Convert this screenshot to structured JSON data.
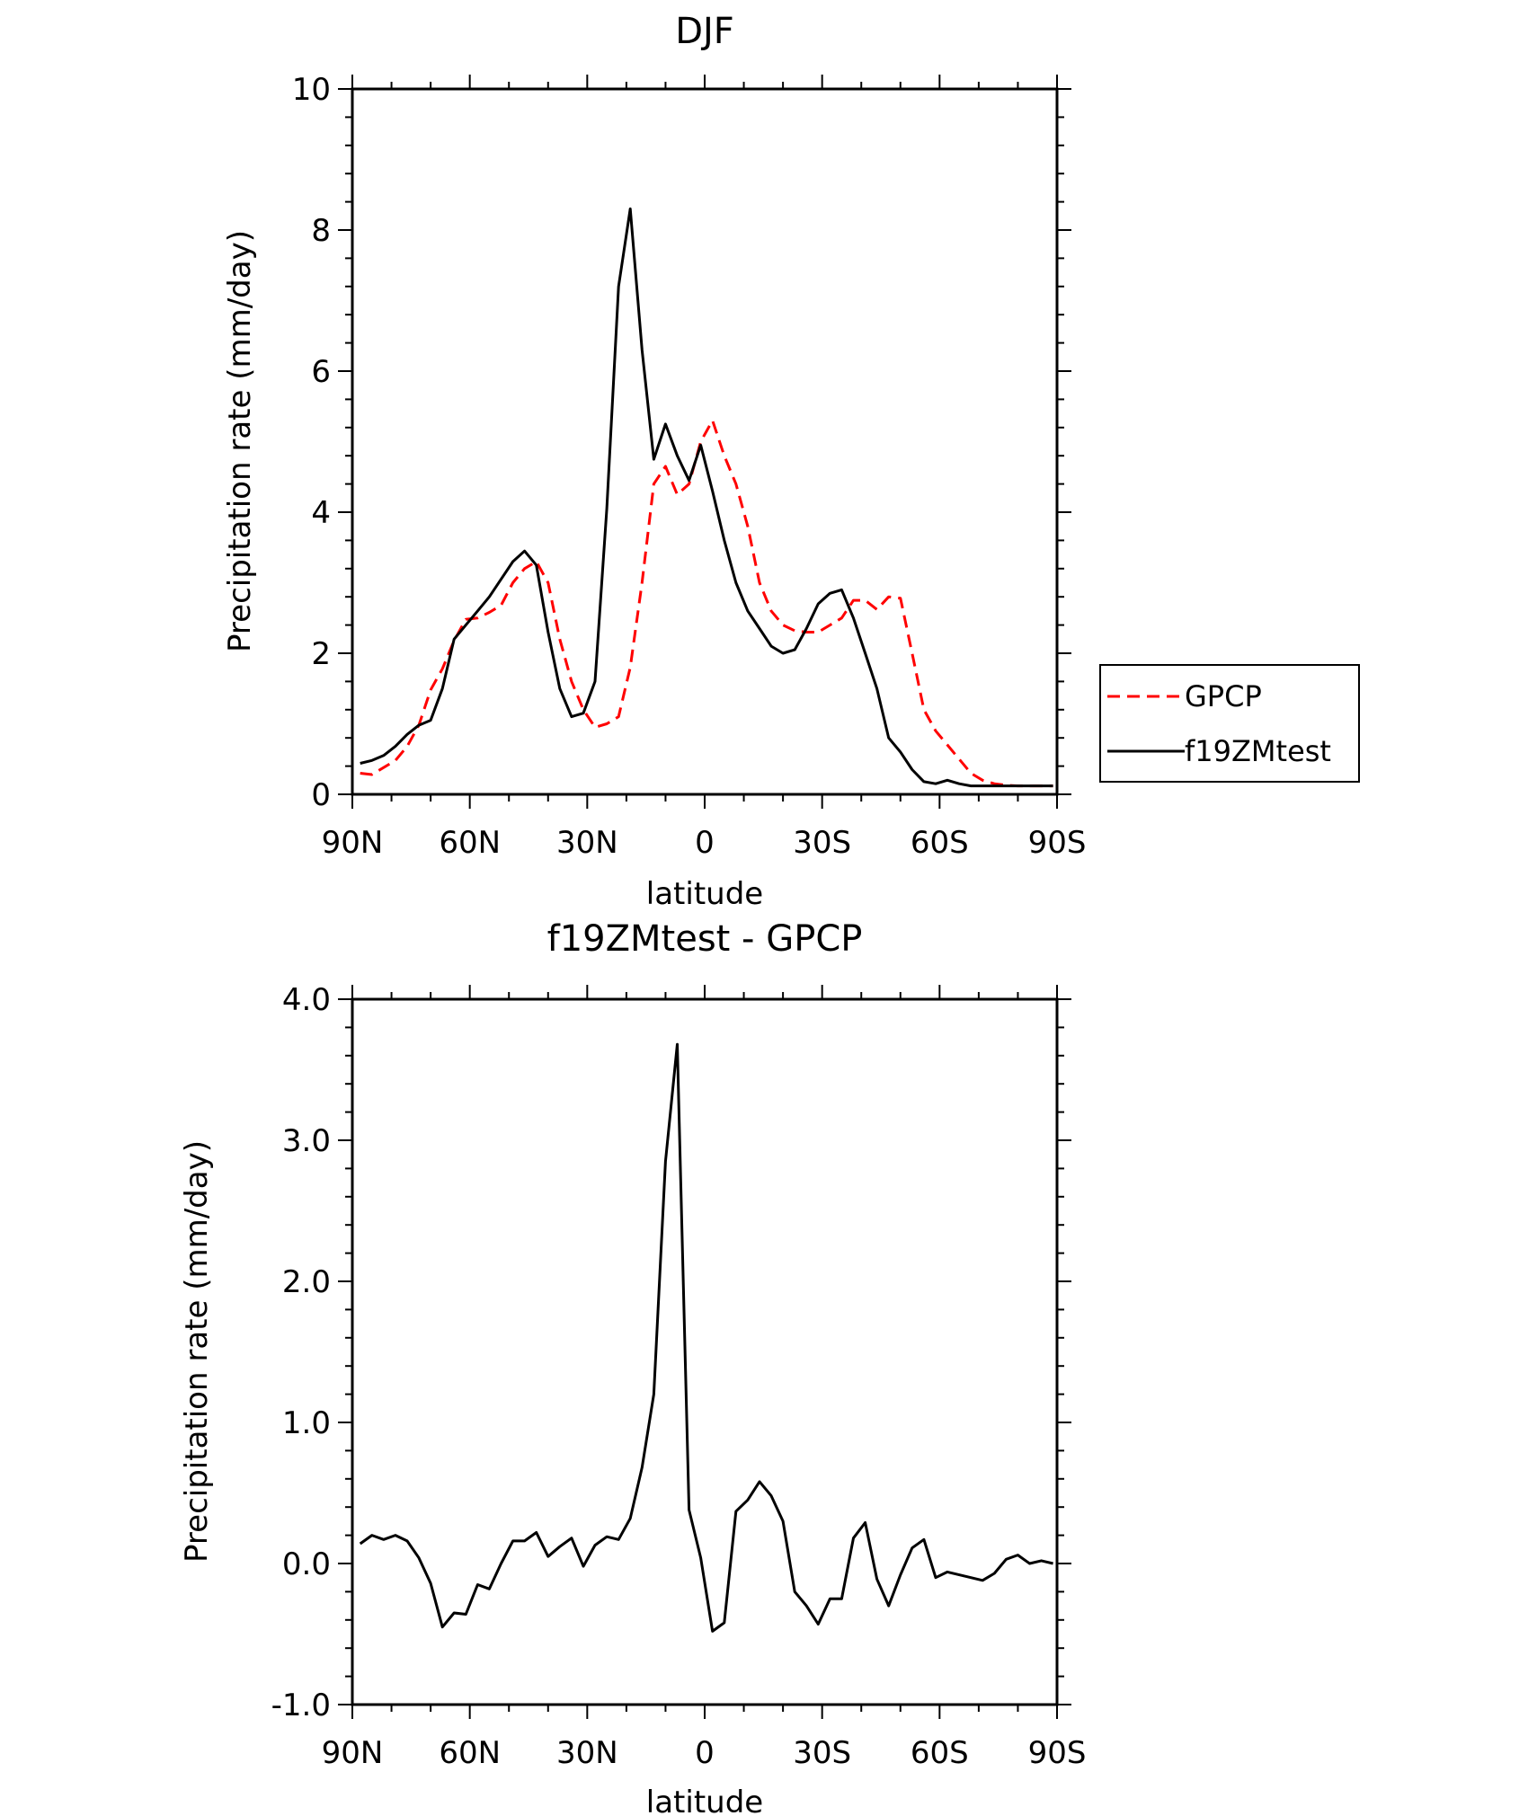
{
  "chart_data": [
    {
      "type": "line",
      "title": "DJF",
      "xlabel": "latitude",
      "ylabel": "Precipitation rate (mm/day)",
      "xlim": [
        90,
        -90
      ],
      "ylim": [
        0,
        10
      ],
      "x_tick_values": [
        90,
        60,
        30,
        0,
        -30,
        -60,
        -90
      ],
      "x_ticks": [
        "90N",
        "60N",
        "30N",
        "0",
        "30S",
        "60S",
        "90S"
      ],
      "y_tick_values": [
        0,
        2,
        4,
        6,
        8,
        10
      ],
      "y_ticks": [
        "0",
        "2",
        "4",
        "6",
        "8",
        "10"
      ],
      "legend_position": "right",
      "series": [
        {
          "name": "GPCP",
          "color": "#ff0000",
          "style": "dashed",
          "x": [
            88,
            85,
            82,
            79,
            76,
            73,
            70,
            67,
            64,
            61,
            58,
            55,
            52,
            49,
            46,
            43,
            40,
            37,
            34,
            31,
            28,
            25,
            22,
            19,
            16,
            13,
            10,
            7,
            4,
            1,
            -2,
            -5,
            -8,
            -11,
            -14,
            -17,
            -20,
            -23,
            -26,
            -29,
            -32,
            -35,
            -38,
            -41,
            -44,
            -47,
            -50,
            -53,
            -56,
            -59,
            -62,
            -65,
            -68,
            -71,
            -74,
            -77,
            -80,
            -83,
            -86,
            -89
          ],
          "values": [
            0.3,
            0.28,
            0.38,
            0.48,
            0.68,
            0.98,
            1.48,
            1.78,
            2.18,
            2.48,
            2.5,
            2.58,
            2.68,
            3.0,
            3.2,
            3.3,
            3.0,
            2.2,
            1.6,
            1.2,
            0.95,
            1.0,
            1.1,
            1.8,
            3.0,
            4.4,
            4.65,
            4.25,
            4.4,
            5.0,
            5.3,
            4.8,
            4.4,
            3.8,
            3.0,
            2.6,
            2.4,
            2.32,
            2.3,
            2.3,
            2.4,
            2.5,
            2.75,
            2.75,
            2.62,
            2.8,
            2.78,
            2.0,
            1.2,
            0.9,
            0.7,
            0.5,
            0.3,
            0.2,
            0.15,
            0.13,
            0.12,
            0.12,
            0.12,
            0.12
          ]
        },
        {
          "name": "f19ZMtest",
          "color": "#000000",
          "style": "solid",
          "x": [
            88,
            85,
            82,
            79,
            76,
            73,
            70,
            67,
            64,
            61,
            58,
            55,
            52,
            49,
            46,
            43,
            40,
            37,
            34,
            31,
            28,
            25,
            22,
            19,
            16,
            13,
            10,
            7,
            4,
            1,
            -2,
            -5,
            -8,
            -11,
            -14,
            -17,
            -20,
            -23,
            -26,
            -29,
            -32,
            -35,
            -38,
            -41,
            -44,
            -47,
            -50,
            -53,
            -56,
            -59,
            -62,
            -65,
            -68,
            -71,
            -74,
            -77,
            -80,
            -83,
            -86,
            -89
          ],
          "values": [
            0.44,
            0.48,
            0.55,
            0.68,
            0.85,
            0.98,
            1.05,
            1.5,
            2.2,
            2.4,
            2.6,
            2.8,
            3.05,
            3.3,
            3.45,
            3.25,
            2.3,
            1.5,
            1.1,
            1.15,
            1.6,
            4.05,
            7.2,
            8.3,
            6.3,
            4.75,
            5.25,
            4.8,
            4.45,
            4.95,
            4.3,
            3.6,
            3.0,
            2.6,
            2.35,
            2.1,
            2.0,
            2.05,
            2.35,
            2.7,
            2.85,
            2.9,
            2.5,
            2.0,
            1.5,
            0.8,
            0.6,
            0.35,
            0.18,
            0.15,
            0.2,
            0.15,
            0.12,
            0.12,
            0.12,
            0.12,
            0.12,
            0.12,
            0.12,
            0.12
          ]
        }
      ]
    },
    {
      "type": "line",
      "title": "f19ZMtest - GPCP",
      "xlabel": "latitude",
      "ylabel": "Precipitation rate (mm/day)",
      "xlim": [
        90,
        -90
      ],
      "ylim": [
        -1,
        4
      ],
      "x_tick_values": [
        90,
        60,
        30,
        0,
        -30,
        -60,
        -90
      ],
      "x_ticks": [
        "90N",
        "60N",
        "30N",
        "0",
        "30S",
        "60S",
        "90S"
      ],
      "y_tick_values": [
        -1,
        0,
        1,
        2,
        3,
        4
      ],
      "y_ticks": [
        "-1.0",
        "0.0",
        "1.0",
        "2.0",
        "3.0",
        "4.0"
      ],
      "series": [
        {
          "color": "#000000",
          "style": "solid",
          "x": [
            88,
            85,
            82,
            79,
            76,
            73,
            70,
            67,
            64,
            61,
            58,
            55,
            52,
            49,
            46,
            43,
            40,
            37,
            34,
            31,
            28,
            25,
            22,
            19,
            16,
            13,
            10,
            7,
            4,
            1,
            -2,
            -5,
            -8,
            -11,
            -14,
            -17,
            -20,
            -23,
            -26,
            -29,
            -32,
            -35,
            -38,
            -41,
            -44,
            -47,
            -50,
            -53,
            -56,
            -59,
            -62,
            -65,
            -68,
            -71,
            -74,
            -77,
            -80,
            -83,
            -86,
            -89
          ],
          "values": [
            0.14,
            0.2,
            0.17,
            0.2,
            0.16,
            0.04,
            -0.14,
            -0.45,
            -0.35,
            -0.36,
            -0.15,
            -0.18,
            0.0,
            0.16,
            0.16,
            0.22,
            0.05,
            0.12,
            0.18,
            -0.02,
            0.13,
            0.19,
            0.17,
            0.32,
            0.68,
            1.2,
            2.85,
            3.68,
            0.38,
            0.04,
            -0.48,
            -0.42,
            0.37,
            0.45,
            0.58,
            0.48,
            0.3,
            -0.2,
            -0.3,
            -0.43,
            -0.25,
            -0.25,
            0.18,
            0.29,
            -0.11,
            -0.3,
            -0.08,
            0.11,
            0.17,
            -0.1,
            -0.06,
            -0.08,
            -0.1,
            -0.12,
            -0.07,
            0.03,
            0.06,
            0.0,
            0.02,
            0.0
          ]
        }
      ]
    }
  ]
}
